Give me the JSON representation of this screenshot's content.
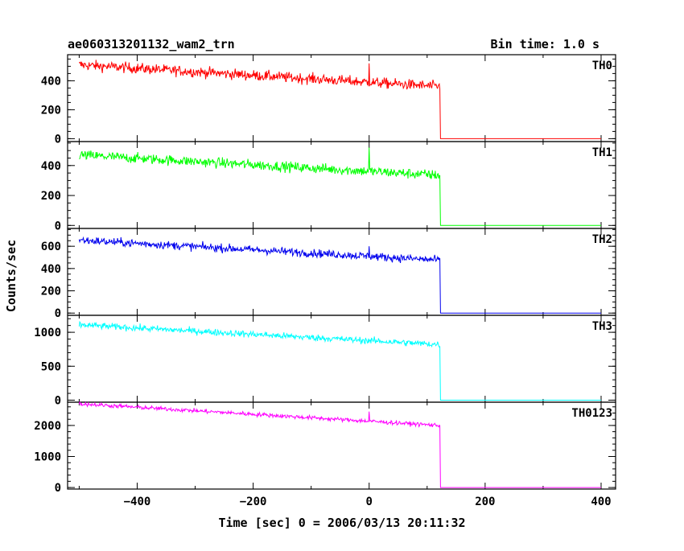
{
  "header": {
    "title": "ae060313201132_wam2_trn",
    "bin_time": "Bin time: 1.0 s"
  },
  "axes": {
    "xlabel": "Time [sec] 0 = 2006/03/13 20:11:32",
    "ylabel": "Counts/sec"
  },
  "chart_data": {
    "type": "line",
    "title": "ae060313201132_wam2_trn",
    "xlabel": "Time [sec] 0 = 2006/03/13 20:11:32",
    "ylabel": "Counts/sec",
    "xlim": [
      -520,
      425
    ],
    "x_ticks": [
      -400,
      -200,
      0,
      200,
      400
    ],
    "x_tick_labels": [
      "−400",
      "−200",
      "0",
      "200",
      "400"
    ],
    "bin_time_s": 1.0,
    "panels": [
      {
        "name": "TH0",
        "color": "#ff0000",
        "ylim": [
          -20,
          580
        ],
        "yticks": [
          0,
          200,
          400
        ],
        "ytick_labels": [
          "0",
          "200",
          "400"
        ],
        "x_start": -500,
        "x_drop": 122,
        "x_end": 400,
        "level_start": 510,
        "level_end": 360,
        "noise": 30,
        "spike_at_0": 520,
        "level_after": 0
      },
      {
        "name": "TH1",
        "color": "#00ff00",
        "ylim": [
          -20,
          560
        ],
        "yticks": [
          0,
          200,
          400
        ],
        "ytick_labels": [
          "0",
          "200",
          "400"
        ],
        "x_start": -500,
        "x_drop": 122,
        "x_end": 400,
        "level_start": 470,
        "level_end": 335,
        "noise": 28,
        "spike_at_0": 520,
        "level_after": 0
      },
      {
        "name": "TH2",
        "color": "#0000ee",
        "ylim": [
          -20,
          760
        ],
        "yticks": [
          0,
          200,
          400,
          600
        ],
        "ytick_labels": [
          "0",
          "200",
          "400",
          "600"
        ],
        "x_start": -500,
        "x_drop": 122,
        "x_end": 400,
        "level_start": 655,
        "level_end": 475,
        "noise": 30,
        "spike_at_0": 600,
        "level_after": 0
      },
      {
        "name": "TH3",
        "color": "#00ffff",
        "ylim": [
          -30,
          1250
        ],
        "yticks": [
          0,
          500,
          1000
        ],
        "ytick_labels": [
          "0",
          "500",
          "1000"
        ],
        "x_start": -500,
        "x_drop": 122,
        "x_end": 400,
        "level_start": 1110,
        "level_end": 820,
        "noise": 40,
        "spike_at_0": 0,
        "level_after": 0
      },
      {
        "name": "TH0123",
        "color": "#ff00ff",
        "ylim": [
          -50,
          2750
        ],
        "yticks": [
          0,
          1000,
          2000
        ],
        "ytick_labels": [
          "0",
          "1000",
          "2000"
        ],
        "x_start": -500,
        "x_drop": 122,
        "x_end": 400,
        "level_start": 2700,
        "level_end": 2000,
        "noise": 55,
        "spike_at_0": 2450,
        "level_after": 0
      }
    ]
  }
}
